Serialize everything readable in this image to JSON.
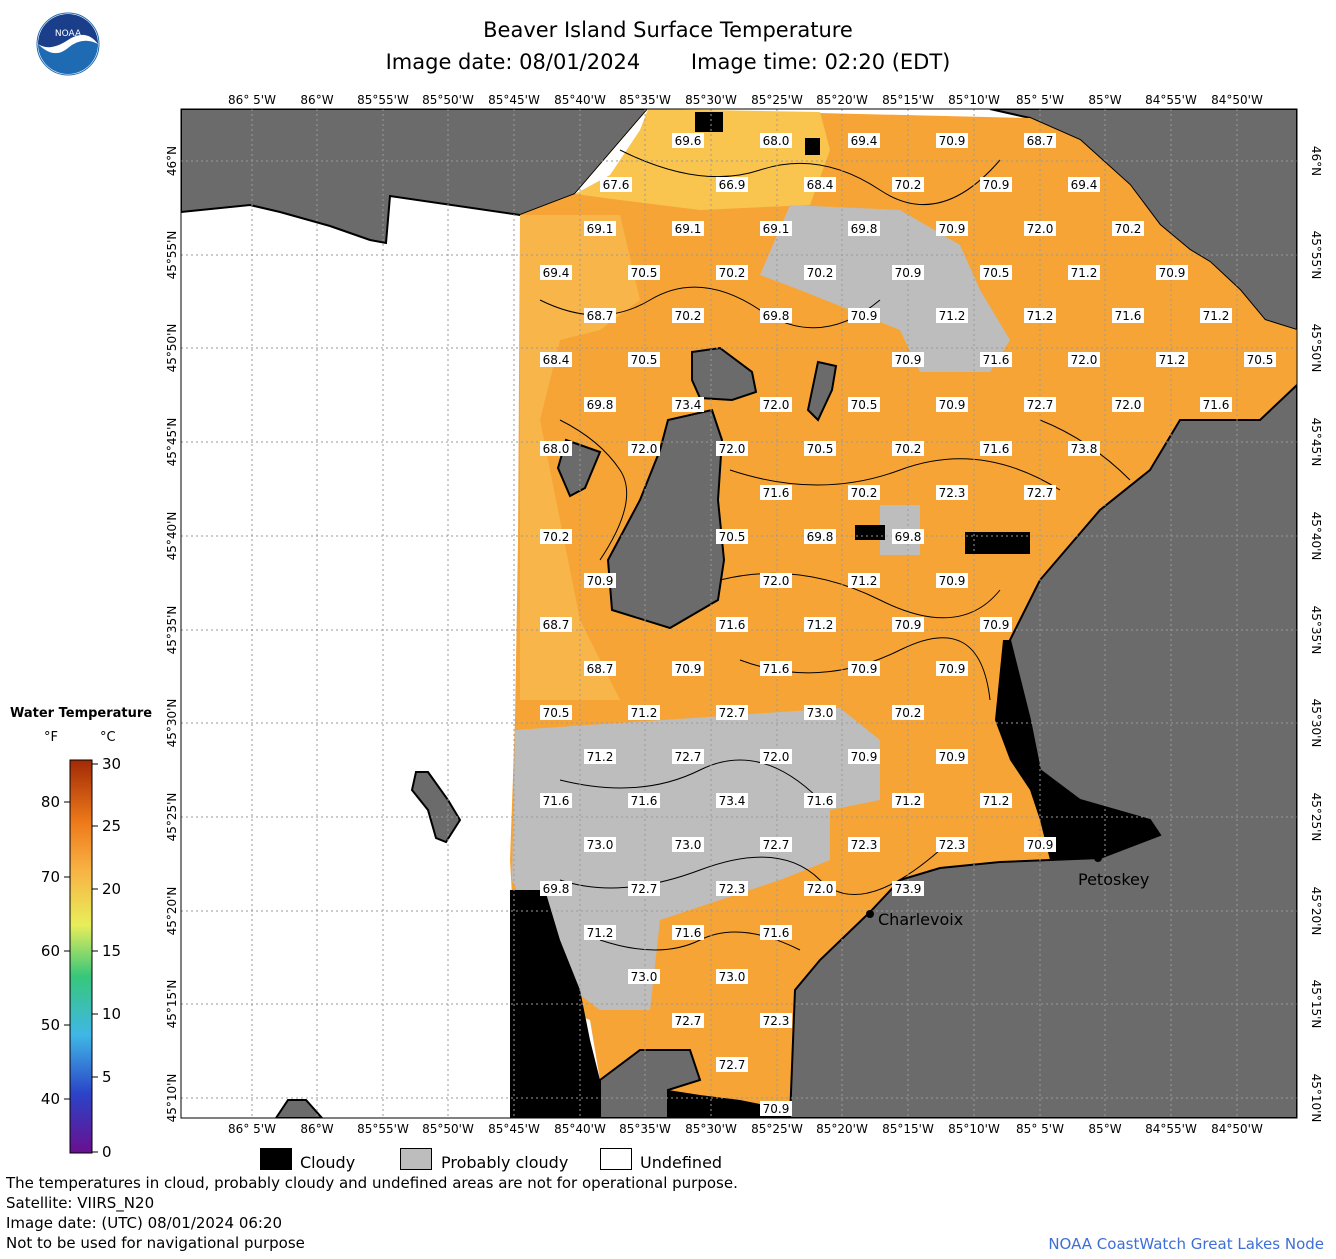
{
  "header": {
    "title": "Beaver Island Surface Temperature",
    "image_date": "Image date: 08/01/2024",
    "image_time": "Image time: 02:20 (EDT)"
  },
  "logo": {
    "text": "NOAA",
    "icon": "noaa-logo-icon"
  },
  "colors": {
    "land": "#6b6b6b",
    "undefined": "#ffffff",
    "cloudy": "#000000",
    "probably_cloudy": "#bdbdbd",
    "water_warm": "#f7a436",
    "water_cool": "#f9c54f"
  },
  "map": {
    "lon_labels": [
      "86° 5'W",
      "86°W",
      "85°55'W",
      "85°50'W",
      "85°45'W",
      "85°40'W",
      "85°35'W",
      "85°30'W",
      "85°25'W",
      "85°20'W",
      "85°15'W",
      "85°10'W",
      "85° 5'W",
      "85°W",
      "84°55'W",
      "84°50'W"
    ],
    "lat_labels": [
      "46°N",
      "45°55'N",
      "45°50'N",
      "45°45'N",
      "45°40'N",
      "45°35'N",
      "45°30'N",
      "45°25'N",
      "45°20'N",
      "45°15'N",
      "45°10'N"
    ],
    "cities": [
      "Petoskey",
      "Charlevoix"
    ],
    "temperature_labels": [
      "69.6",
      "68.0",
      "69.4",
      "70.9",
      "68.7",
      "67.6",
      "66.9",
      "68.4",
      "70.2",
      "70.9",
      "69.4",
      "69.1",
      "69.1",
      "69.1",
      "69.8",
      "70.9",
      "72.0",
      "70.2",
      "69.4",
      "70.5",
      "70.2",
      "70.2",
      "70.9",
      "70.5",
      "71.2",
      "70.9",
      "68.7",
      "70.2",
      "69.8",
      "70.9",
      "71.2",
      "71.2",
      "71.6",
      "71.2",
      "68.4",
      "70.5",
      "70.9",
      "71.6",
      "72.0",
      "71.2",
      "70.5",
      "69.8",
      "73.4",
      "72.0",
      "70.5",
      "70.9",
      "72.7",
      "72.0",
      "71.6",
      "68.0",
      "72.0",
      "72.0",
      "70.5",
      "70.2",
      "71.6",
      "73.8",
      "71.6",
      "70.2",
      "72.3",
      "72.7",
      "70.2",
      "70.5",
      "69.8",
      "69.8",
      "70.9",
      "72.0",
      "71.2",
      "70.9",
      "68.7",
      "71.6",
      "71.2",
      "70.9",
      "70.9",
      "68.7",
      "70.9",
      "71.6",
      "70.9",
      "70.9",
      "70.5",
      "71.2",
      "72.7",
      "73.0",
      "70.2",
      "71.2",
      "72.7",
      "72.0",
      "70.9",
      "70.9",
      "71.6",
      "71.6",
      "73.4",
      "71.6",
      "71.2",
      "71.2",
      "73.0",
      "73.0",
      "72.7",
      "72.3",
      "72.3",
      "70.9",
      "69.8",
      "72.7",
      "72.3",
      "72.0",
      "73.9",
      "71.2",
      "71.6",
      "71.6",
      "73.0",
      "73.0",
      "72.7",
      "72.3",
      "72.7",
      "70.9"
    ]
  },
  "legend": {
    "title": "Water Temperature",
    "unit_f": "°F",
    "unit_c": "°C",
    "f_ticks": [
      "80",
      "70",
      "60",
      "50",
      "40"
    ],
    "c_ticks": [
      "30",
      "25",
      "20",
      "15",
      "10",
      "5",
      "0"
    ]
  },
  "key": {
    "cloudy": "Cloudy",
    "probably_cloudy": "Probably cloudy",
    "undefined": "Undefined"
  },
  "notes": {
    "line1": "The temperatures in cloud, probably cloudy and undefined areas are not for operational purpose.",
    "line2": "Satellite: VIIRS_N20",
    "line3": "Image date: (UTC) 08/01/2024  06:20",
    "line4": "Not to be used for navigational purpose"
  },
  "credit": "NOAA CoastWatch Great Lakes Node"
}
